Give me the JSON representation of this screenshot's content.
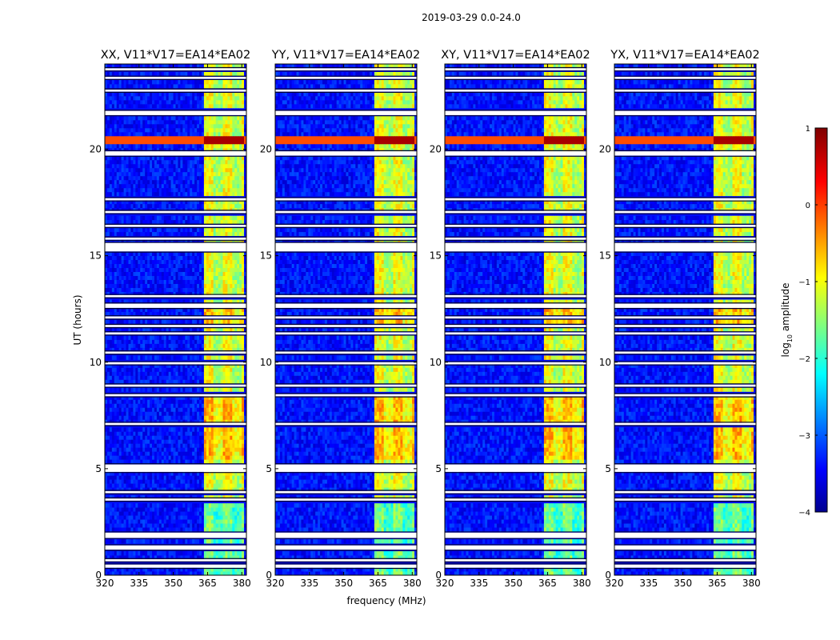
{
  "figure_title": "2019-03-29 0.0-24.0",
  "chart_data": {
    "type": "heatmap",
    "title": "2019-03-29 0.0-24.0",
    "xlabel": "frequency (MHz)",
    "ylabel": "UT (hours)",
    "xlim": [
      320,
      382
    ],
    "ylim": [
      0,
      24
    ],
    "x_ticks": [
      320,
      335,
      350,
      365,
      380
    ],
    "y_ticks": [
      0,
      5,
      10,
      15,
      20
    ],
    "panels": [
      {
        "title": "XX, V11*V17=EA14*EA02",
        "polarization": "XX"
      },
      {
        "title": "YY, V11*V17=EA14*EA02",
        "polarization": "YY"
      },
      {
        "title": "XY, V11*V17=EA14*EA02",
        "polarization": "XY"
      },
      {
        "title": "YX, V11*V17=EA14*EA02",
        "polarization": "YX"
      }
    ],
    "colorbar": {
      "label": "log10 amplitude",
      "label_main": "log",
      "label_sub": "10",
      "label_tail": " amplitude",
      "range": [
        -4,
        1
      ],
      "ticks": [
        1,
        0,
        -1,
        -2,
        -3,
        -4
      ],
      "tick_labels": [
        "1",
        "0",
        "−1",
        "−2",
        "−3",
        "−4"
      ],
      "colormap": "jet"
    },
    "features": {
      "background_log_amp": -3.3,
      "rfi_band_mhz": [
        363.5,
        380.5
      ],
      "rfi_band_log_amp": -1.0,
      "bright_rfi_time_hours": [
        20.3,
        20.7
      ],
      "bright_rfi_log_amp": 0.6,
      "flagged_time_ranges_hours": [
        [
          0.35,
          0.5
        ],
        [
          0.65,
          0.75
        ],
        [
          1.2,
          1.4
        ],
        [
          1.75,
          2.0
        ],
        [
          3.5,
          3.6
        ],
        [
          3.85,
          3.95
        ],
        [
          4.85,
          5.2
        ],
        [
          7.05,
          7.15
        ],
        [
          8.4,
          8.5
        ],
        [
          8.85,
          8.95
        ],
        [
          9.9,
          10.0
        ],
        [
          10.4,
          10.5
        ],
        [
          11.3,
          11.4
        ],
        [
          11.65,
          11.75
        ],
        [
          12.05,
          12.15
        ],
        [
          12.55,
          12.75
        ],
        [
          13.05,
          13.15
        ],
        [
          15.2,
          15.6
        ],
        [
          15.75,
          15.85
        ],
        [
          16.35,
          16.45
        ],
        [
          17.0,
          17.1
        ],
        [
          17.6,
          17.7
        ],
        [
          19.7,
          19.9
        ],
        [
          21.6,
          21.8
        ],
        [
          22.7,
          22.8
        ],
        [
          23.3,
          23.4
        ],
        [
          23.7,
          23.8
        ]
      ]
    }
  }
}
